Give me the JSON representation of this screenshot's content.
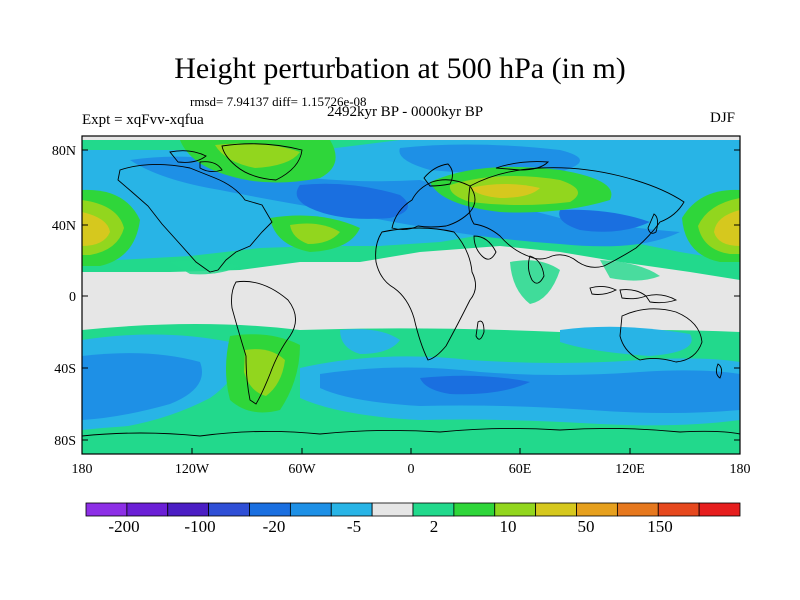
{
  "figure": {
    "title": "Height perturbation at 500 hPa (in m)",
    "stats": "rmsd= 7.94137 diff= 1.15726e-08",
    "experiment": "Expt = xqFvv-xqfua",
    "period": "2492kyr BP - 0000kyr BP",
    "season": "DJF"
  },
  "axes": {
    "lat_ticks": [
      "80N",
      "40N",
      "0",
      "40S",
      "80S"
    ],
    "lon_ticks": [
      "180",
      "120W",
      "60W",
      "0",
      "60E",
      "120E",
      "180"
    ]
  },
  "colorbar": {
    "colors": [
      "#8d2fe6",
      "#6b1fd6",
      "#4b1ec4",
      "#2f4fd6",
      "#1a6fe0",
      "#1e90e6",
      "#28b4e6",
      "#e6e6e6",
      "#22d98c",
      "#2fd63a",
      "#92d61e",
      "#d6c81e",
      "#e6a01e",
      "#e6781e",
      "#e6481e",
      "#e61e1e"
    ],
    "labels": [
      "-200",
      "-100",
      "-20",
      "-5",
      "2",
      "10",
      "50",
      "150"
    ]
  },
  "map_colors": {
    "background": "#e6e6e6",
    "light_blue": "#28b4e6",
    "blue": "#1e90e6",
    "dark_blue": "#1a6fe0",
    "green": "#2fd63a",
    "teal": "#22d98c",
    "yellow_green": "#92d61e",
    "yellow": "#d6c81e",
    "coastline": "#000000"
  }
}
